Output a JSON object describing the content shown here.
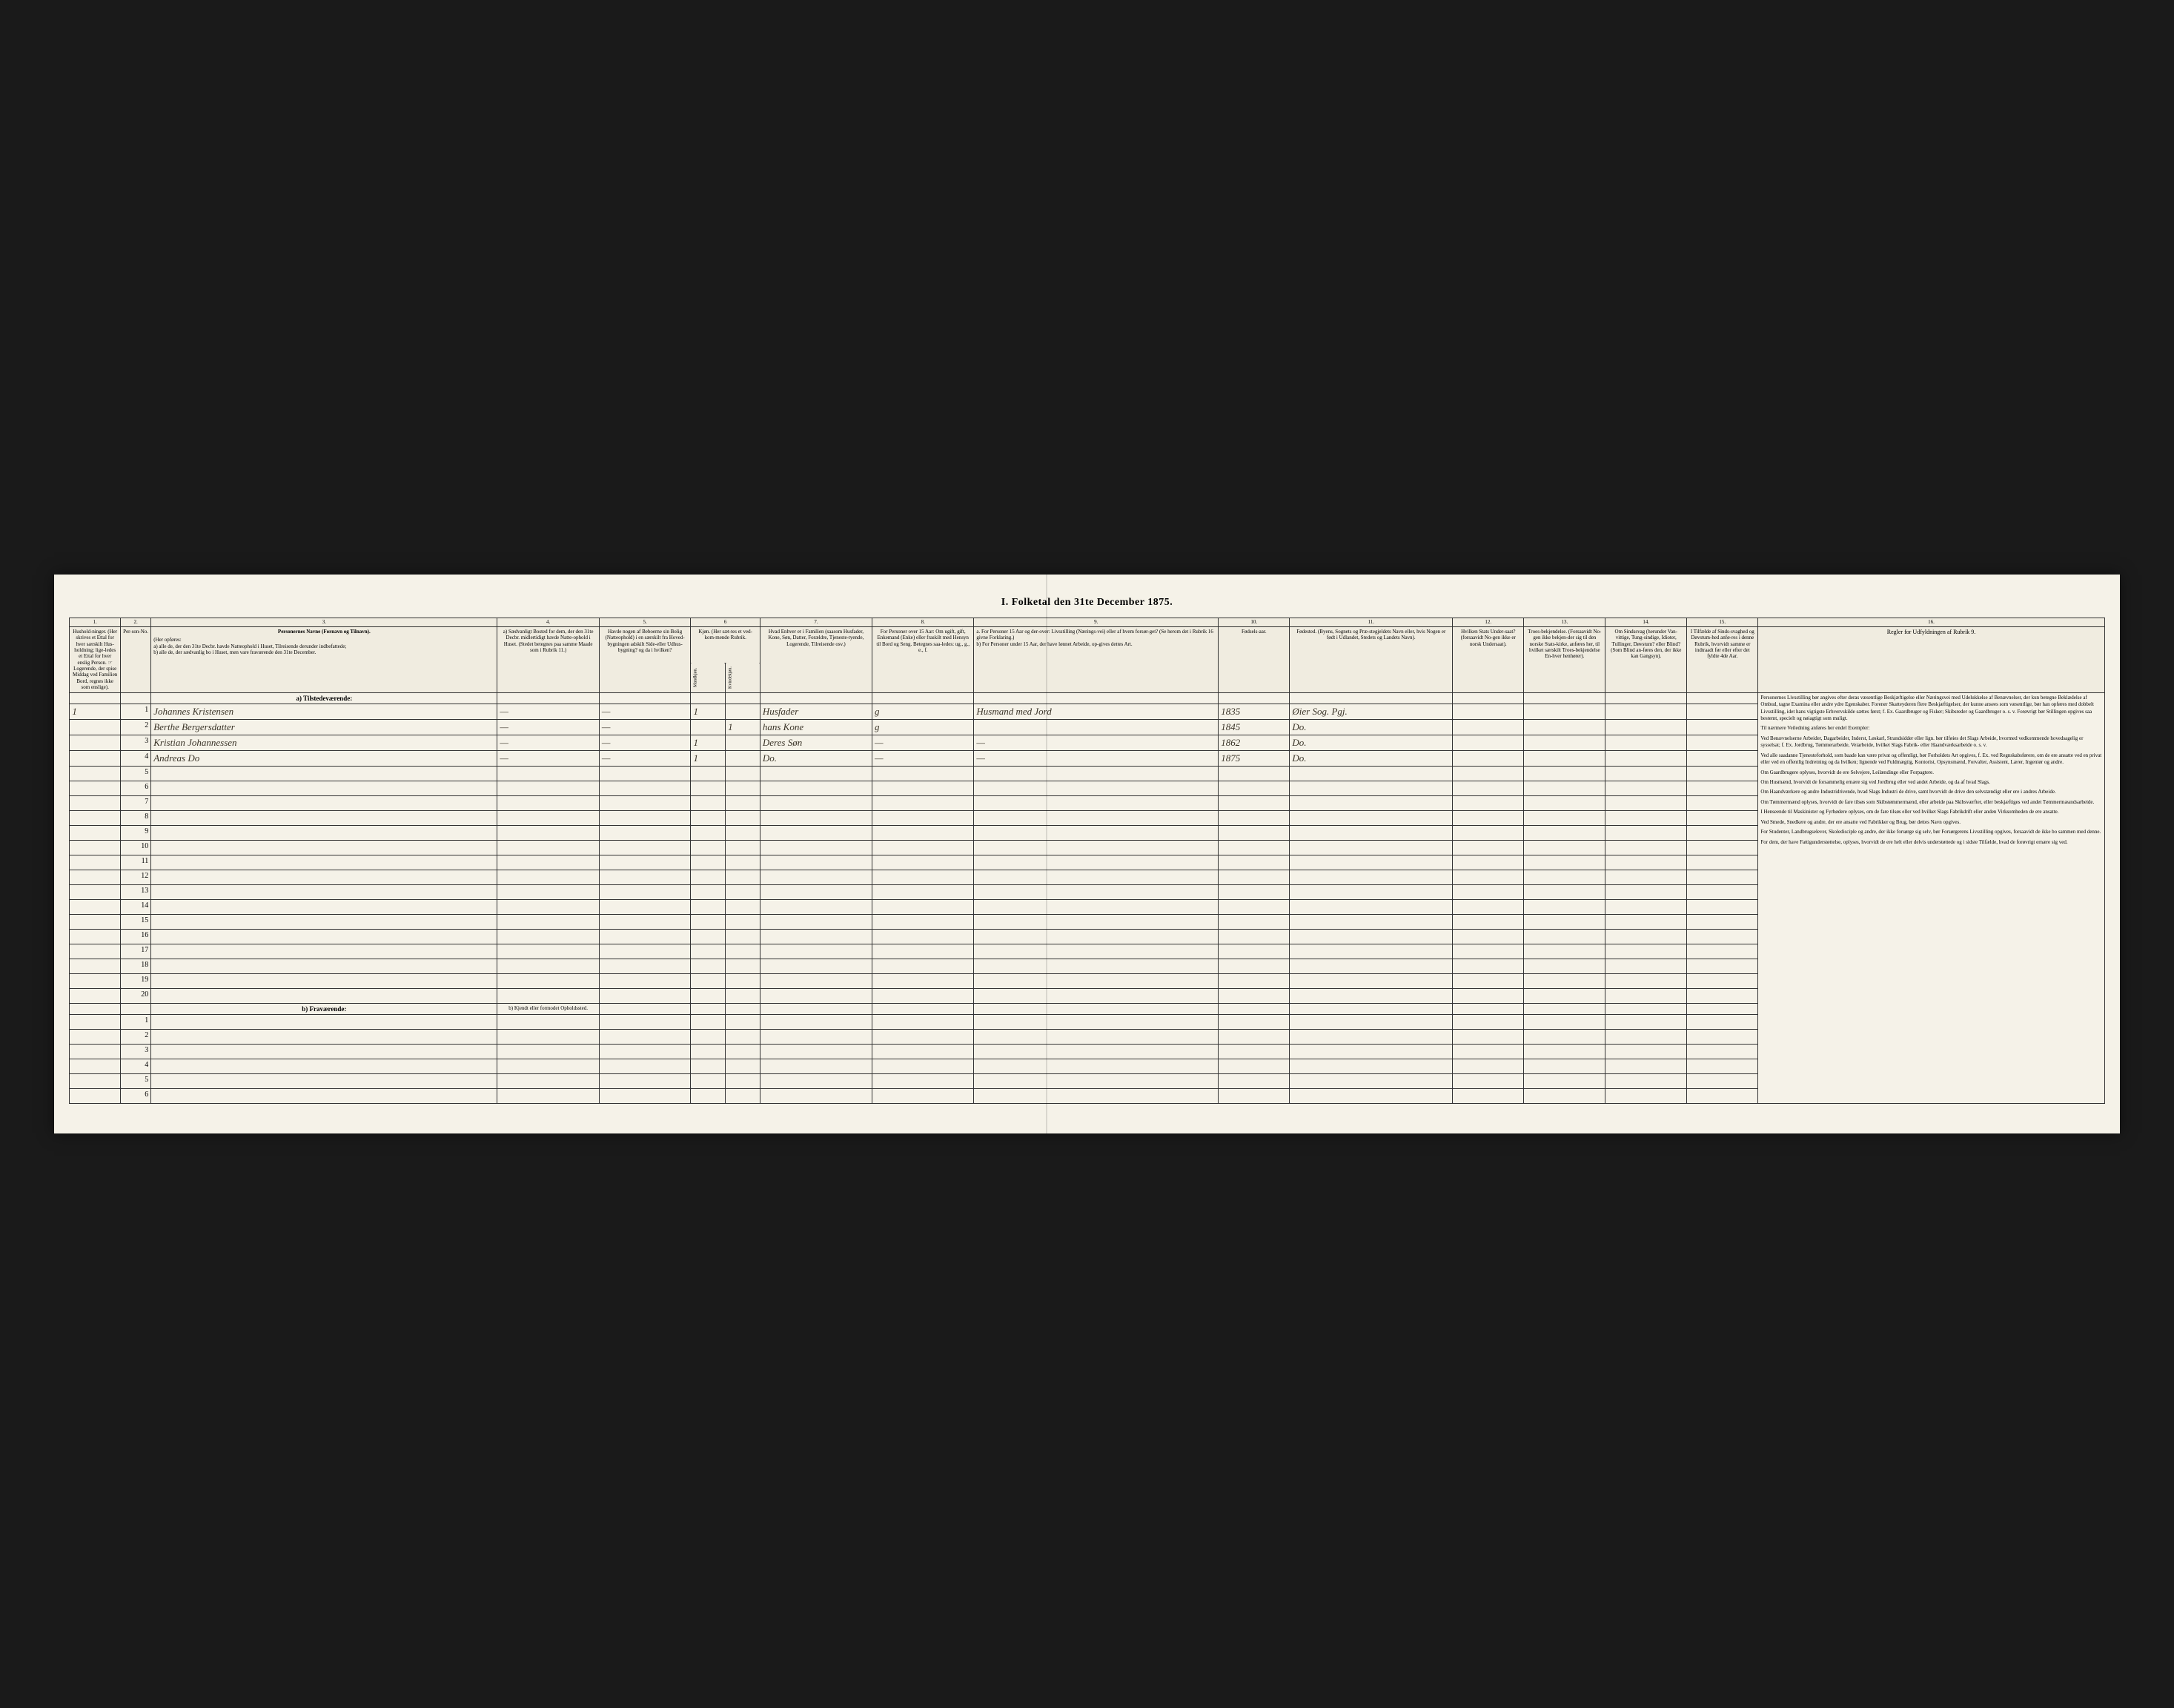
{
  "title": "I. Folketal den 31te December 1875.",
  "columnNumbers": [
    "1.",
    "2.",
    "3.",
    "4.",
    "5.",
    "6",
    "7.",
    "8.",
    "9.",
    "10.",
    "11.",
    "12.",
    "13.",
    "14.",
    "15.",
    "16."
  ],
  "headers": {
    "c1": "Hushold-ninger. (Her skrives et Ettal for hver særskilt Hus-holdning; lige-ledes et Ettal for hver enslig Person. ☞ Logerende, der spise Middag ved Familien Bord, regnes ikke som enslige).",
    "c2": "Per-son-No.",
    "c3_title": "Personernes Navne (Fornavn og Tilnavn).",
    "c3_sub": "(Her opføres:\na) alle de, der den 31te Decbr. havde Natteophold i Huset, Tilreisende derunder indbefattede;\nb) alle de, der sædvanlig bo i Huset, men vare fraværende den 31te December.",
    "c4": "a) Sædvanligt Bosted for dem, der den 31te Decbr. midlertidigt havde Natte-ophold i Huset. (Stedet betegnes paa samme Maade som i Rubrik 11.)",
    "c5": "Havde nogen af Beboerne sin Bolig (Natteophold) i en særskilt fra Hoved-bygningen adskilt Side-eller Udhus-bygning? og da i hvilken?",
    "c6": "Kjøn. (Her sæt-tes et ved-kom-mende Rubrik.",
    "c6a": "Mandkjøn.",
    "c6b": "Kvindekjøn.",
    "c7": "Hvad Enhver er i Familien (saasom Husfader, Kone, Søn, Datter, Forældre, Tjeneste-tyende, Logerende, Tilreisende osv.)",
    "c8": "For Personer over 15 Aar: Om ugift, gift, Enkemand (Enke) eller fraskilt med Hensyn til Bord og Seng. Betegnes saa-ledes: ug., g., e., f.",
    "c9": "a. For Personer 15 Aar og der-over: Livsstilling (Nærings-vei) eller af hvem forsør-get? (Se herom det i Rubrik 16 givne Forklaring.)\nb) For Personer under 15 Aar, der have lønnet Arbeide, op-gives dettes Art.",
    "c10": "Fødsels-aar.",
    "c11": "Fødested. (Byens, Sognets og Præ-stegjeldets Navn eller, hvis Nogen er født i Udlandet, Stedets og Landets Navn).",
    "c12": "Hvilken Stats Under-saat? (forsaavidt No-gen ikke er norsk Undersaat).",
    "c13": "Troes-bekjendelse. (Forsaavidt No-gen ikke bekjen-der sig til den norske Stats-kirke, anføres her, til hvilket særskilt Troes-bekjendelse En-hver henhører).",
    "c14": "Om Sindssvag (herunder Van-vittige, Tung-sindige, Idioter, Tullinger, Døvstum? eller Blind? (Som Blind an-føres den, der ikke kan Gangsyn).",
    "c15": "I Tilfælde af Sinds-svaghed og Døvstum-hed anfø-res i denne Rubrik, hvorvidt samme er indtraadt før eller efter det fyldte 4de Aar.",
    "c16_title": "Regler for Udfyldningen af Rubrik 9."
  },
  "sections": {
    "present": "a) Tilstedeværende:",
    "absent": "b) Fraværende:",
    "absent_c4": "b) Kjendt eller formodet Opholdssted."
  },
  "rows": [
    {
      "n": "1",
      "pers": "1",
      "name": "Johannes Kristensen",
      "c4": "—",
      "c5": "—",
      "sex_m": "1",
      "sex_f": "",
      "rel": "Husfader",
      "civ": "g",
      "occ": "Husmand med Jord",
      "year": "1835",
      "birthplace": "Øier Sog. Pgj.",
      "c12": "",
      "c13": "",
      "c14": "",
      "c15": ""
    },
    {
      "n": "",
      "pers": "2",
      "name": "Berthe Bergersdatter",
      "c4": "—",
      "c5": "—",
      "sex_m": "",
      "sex_f": "1",
      "rel": "hans Kone",
      "civ": "g",
      "occ": "",
      "year": "1845",
      "birthplace": "Do.",
      "c12": "",
      "c13": "",
      "c14": "",
      "c15": ""
    },
    {
      "n": "",
      "pers": "3",
      "name": "Kristian Johannessen",
      "c4": "—",
      "c5": "—",
      "sex_m": "1",
      "sex_f": "",
      "rel": "Deres Søn",
      "civ": "—",
      "occ": "—",
      "year": "1862",
      "birthplace": "Do.",
      "c12": "",
      "c13": "",
      "c14": "",
      "c15": ""
    },
    {
      "n": "",
      "pers": "4",
      "name": "Andreas Do",
      "c4": "—",
      "c5": "—",
      "sex_m": "1",
      "sex_f": "",
      "rel": "Do.",
      "civ": "—",
      "occ": "—",
      "year": "1875",
      "birthplace": "Do.",
      "c12": "",
      "c13": "",
      "c14": "",
      "c15": ""
    }
  ],
  "presentEmptyRows": [
    "5",
    "6",
    "7",
    "8",
    "9",
    "10",
    "11",
    "12",
    "13",
    "14",
    "15",
    "16",
    "17",
    "18",
    "19",
    "20"
  ],
  "absentEmptyRows": [
    "1",
    "2",
    "3",
    "4",
    "5",
    "6"
  ],
  "instructions": [
    "Personernes Livsstilling bør angives efter deras væsentlige Beskjæftigelse eller Næringsvei med Udelukkelse af Benævnelser, der kun betegne Beklædelse af Ombud, tagne Examina eller andre ydre Egenskaber. Forener Skatteyderen flere Beskjæftigelser, der kunne ansees som væsentlige, bør han opføres med dobbelt Livsstilling, idet hans vigtigste Erhvervskilde sættes først; f. Ex. Gaardbruger og Fisker; Skibsreder og Gaardbruger o. s. v. Forøvrigt bør Stillingen opgives saa bestemt, specielt og nøiagtigt som muligt.",
    "Til nærmere Veiledning anføres her endel Exempler:",
    "Ved Benævnelserne Arbeider, Dagarbeider, Inderst, Løskarl, Strandsidder eller lign. bør tilføies det Slags Arbeide, hvormed vedkommende hovedsagelig er sysselsat; f. Ex. Jordbrug, Tømmerarbeide, Veiarbeide, hvilket Slags Fabrik- eller Haandværksarbeide o. s. v.",
    "Ved alle saadanne Tjenesteforhold, som baade kan være privat og offentligt, bør Forholdets Art opgives, f. Ex. ved Regnskabsførere, om de ere ansatte ved en privat eller ved en offentlig Indretning og da hvilken; lignende ved Fuldmægtig, Kontorist, Opsynsmænd, Forvalter, Assistent, Lærer, Ingeniør og andre.",
    "Om Gaardbrugere oplyses, hvorvidt de ere Selvejere, Leilændinge eller Forpagtere.",
    "Om Husmænd, hvorvidt de forsammelig ernære sig ved Jordbrug eller ved andet Arbeide, og da af hvad Slags.",
    "Om Haandværkere og andre Industridrivende, hvad Slags Industri de drive, samt hvorvidt de drive den selvstændigt eller ere i andres Arbeide.",
    "Om Tømmermænd oplyses, hvorvidt de fare tilsøs som Skibstømmermænd, eller arbeide paa Skibsværfter, eller beskjæftiges ved andet Tømmermæandsarbeide.",
    "I Henseende til Maskinister og Fyrbødere oplyses, om de fare tilsøs eller ved hvilket Slags Fabrikdrift eller anden Virksomheden de ere ansatte.",
    "Ved Smede, Snedkere og andre, der ere ansatte ved Fabrikker og Brug, bør dettes Navn opgives.",
    "For Studenter, Landbrugselever, Skoledisciple og andre, der ikke forsørge sig selv, bør Forsørgerens Livsstilling opgives, forsaavidt de ikke bo sammen med denne.",
    "For dem, der have Fattigunderstøttelse, oplyses, hvorvidt de ere helt eller delvis understøttede og i sidste Tilfælde, hvad de forøvrigt ernære sig ved."
  ]
}
